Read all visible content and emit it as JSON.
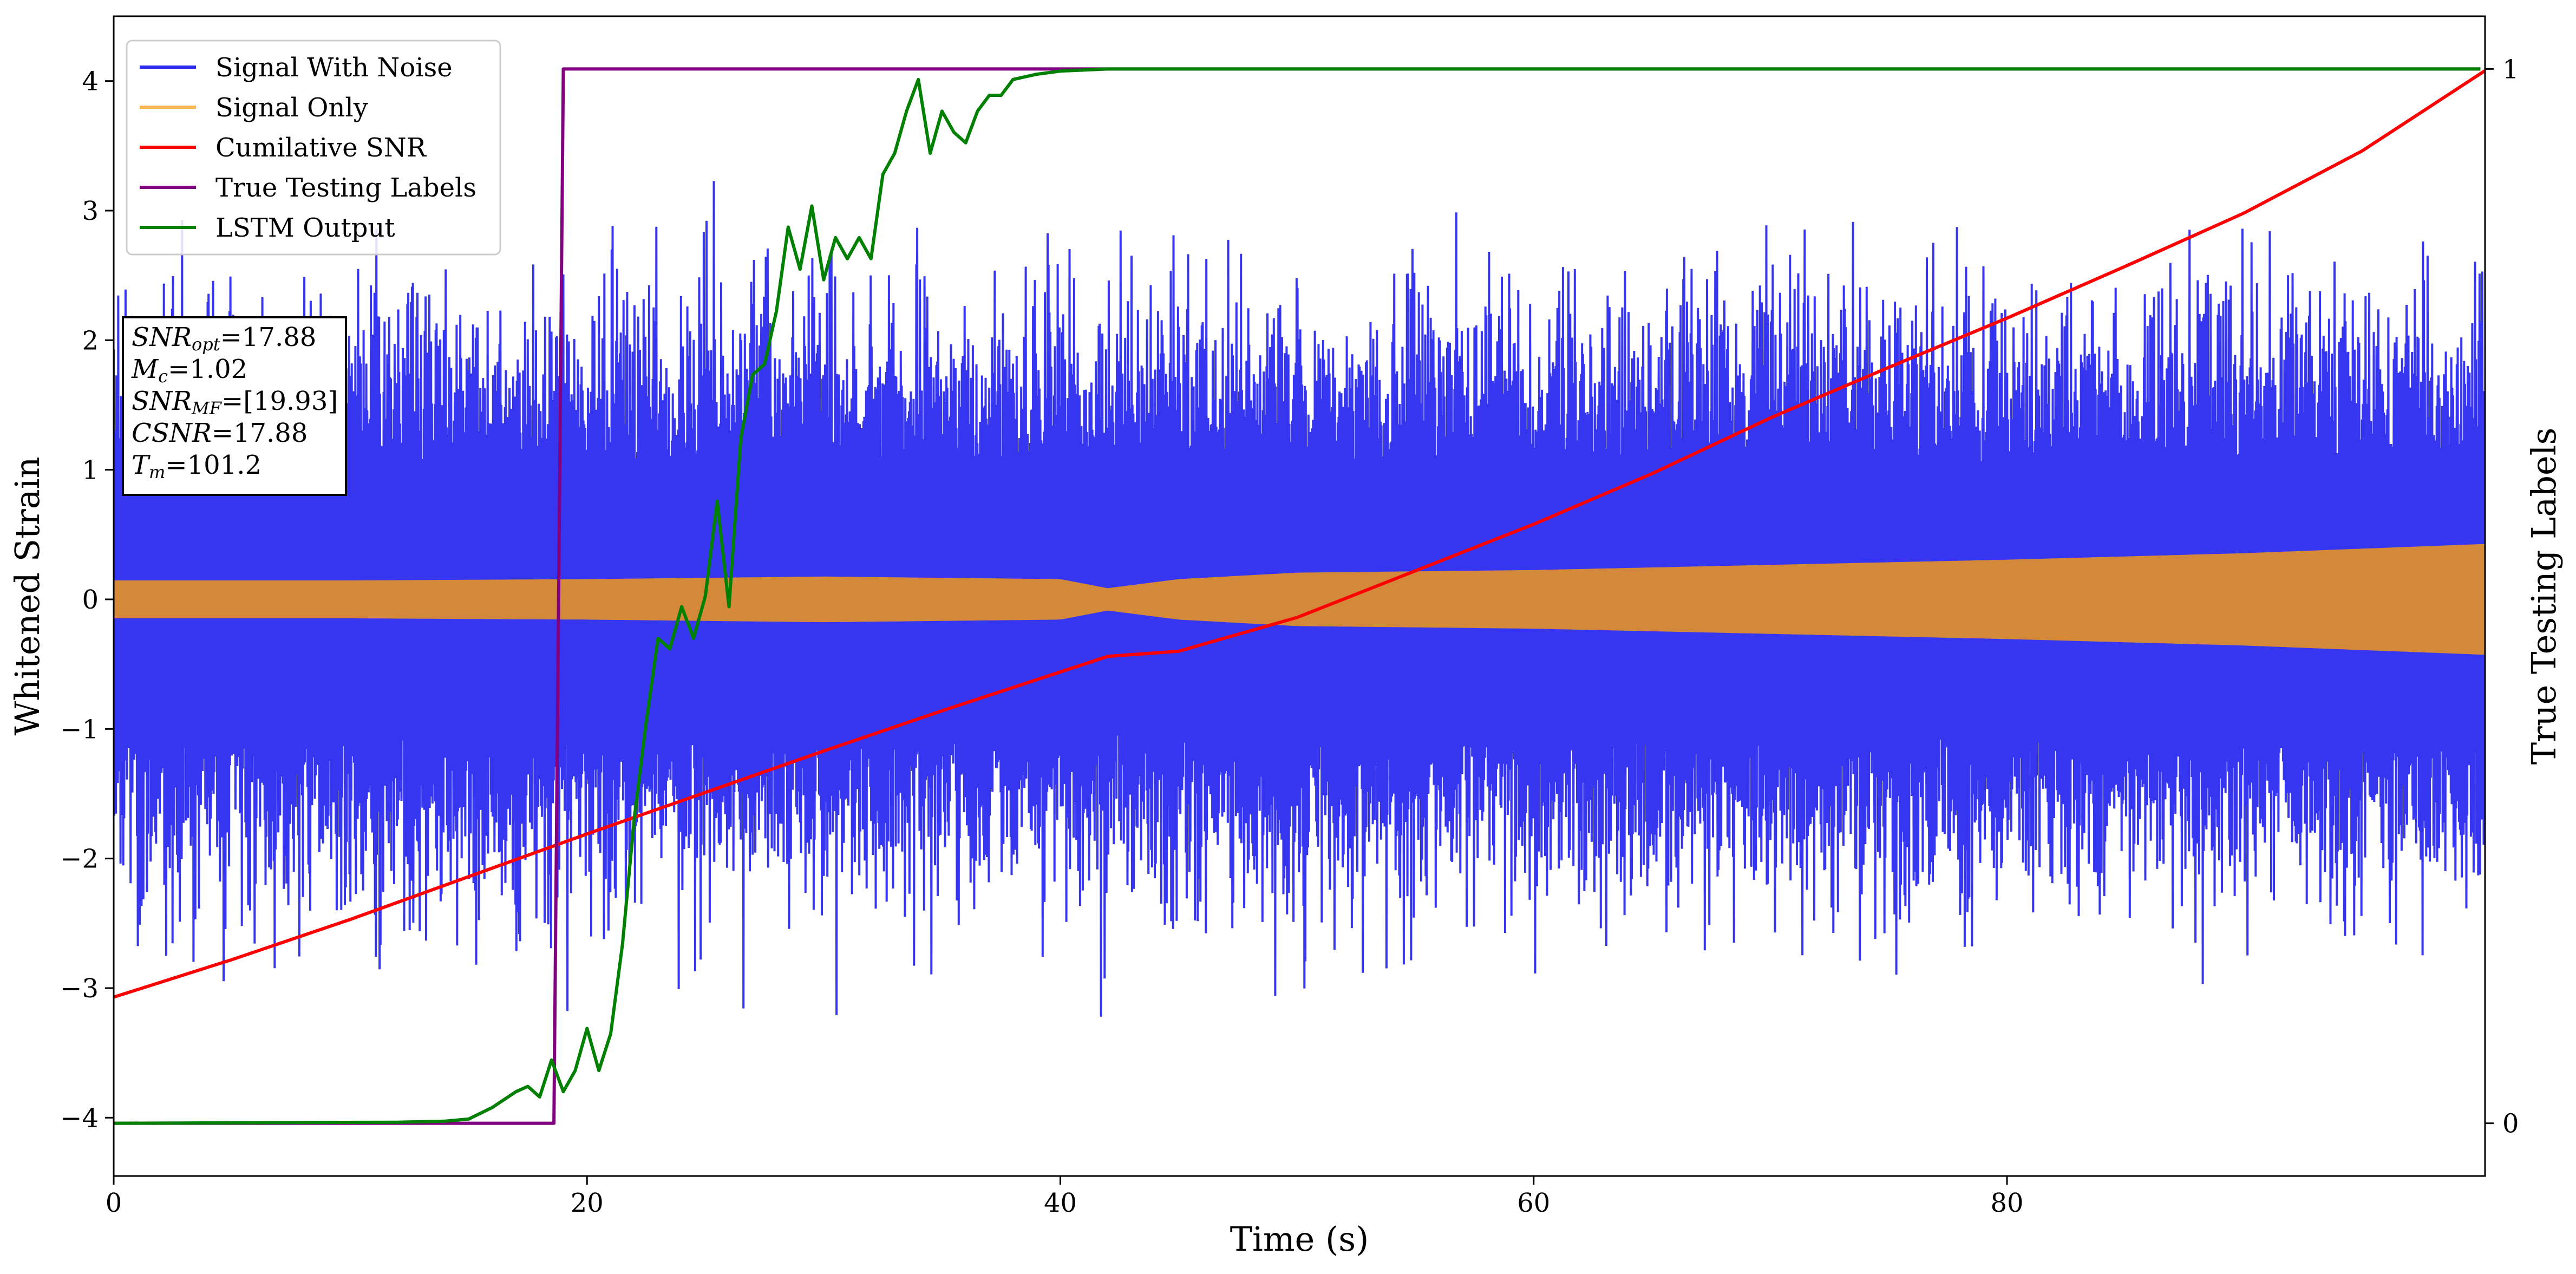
{
  "chart_data": {
    "type": "line",
    "xlabel": "Time (s)",
    "ylabel": "Whitened Strain",
    "ylabel_right": "True Testing Labels",
    "xlim": [
      0,
      100.2
    ],
    "ylim": [
      -4.45,
      4.5
    ],
    "ylim_right": [
      -0.05,
      1.05
    ],
    "x_ticks": [
      0,
      20,
      40,
      60,
      80
    ],
    "y_ticks": [
      -4,
      -3,
      -2,
      -1,
      0,
      1,
      2,
      3,
      4
    ],
    "y_ticks_right": [
      0,
      1
    ],
    "grid": false,
    "legend_position": "top-left",
    "legend": [
      "Signal With Noise",
      "Signal Only",
      "Cumilative SNR",
      "True Testing Labels",
      "LSTM Output"
    ],
    "colors": {
      "signal_with_noise": "#2b2bf0",
      "signal_only": "#d4893a",
      "signal_only_legend": "#ffb74d",
      "cumulative_snr": "#ff0000",
      "true_labels": "#800080",
      "lstm_output": "#008000"
    },
    "annotation": {
      "snr_opt": "=17.88",
      "mc": "=1.02",
      "snr_mf": "=[19.93]",
      "csnr": "=17.88",
      "tm": "=101.2"
    },
    "series": [
      {
        "name": "Signal With Noise",
        "axis": "left",
        "envelope_x": [
          0,
          10,
          20,
          30,
          40,
          50,
          60,
          70,
          80,
          90,
          100
        ],
        "envelope_amplitude": [
          2.3,
          2.4,
          2.3,
          2.4,
          2.3,
          2.4,
          2.3,
          2.4,
          2.3,
          2.4,
          2.3
        ],
        "min": -4.1,
        "max": 3.8
      },
      {
        "name": "Signal Only",
        "axis": "left",
        "envelope_x": [
          0,
          10,
          20,
          30,
          40,
          42,
          45,
          50,
          60,
          70,
          80,
          90,
          100
        ],
        "envelope_amplitude": [
          0.14,
          0.14,
          0.15,
          0.17,
          0.15,
          0.08,
          0.15,
          0.2,
          0.22,
          0.26,
          0.3,
          0.35,
          0.42
        ]
      },
      {
        "name": "Cumilative SNR",
        "axis": "left",
        "x": [
          0,
          5,
          10,
          15,
          20,
          25,
          30,
          35,
          40,
          42,
          45,
          50,
          55,
          60,
          65,
          70,
          75,
          80,
          85,
          90,
          95,
          100.2
        ],
        "y": [
          -3.07,
          -2.78,
          -2.47,
          -2.14,
          -1.81,
          -1.49,
          -1.17,
          -0.86,
          -0.56,
          -0.44,
          -0.4,
          -0.14,
          0.22,
          0.58,
          0.97,
          1.4,
          1.79,
          2.17,
          2.57,
          2.98,
          3.46,
          4.08
        ]
      },
      {
        "name": "True Testing Labels",
        "axis": "right",
        "x": [
          0,
          18.6,
          19.0,
          100
        ],
        "y": [
          0,
          0,
          1,
          1
        ]
      },
      {
        "name": "LSTM Output",
        "axis": "right",
        "x": [
          0,
          12,
          14,
          15,
          16,
          17,
          17.5,
          18,
          18.5,
          19,
          19.5,
          20,
          20.5,
          21,
          21.5,
          22,
          22.5,
          23,
          23.5,
          24,
          24.5,
          25,
          25.5,
          26,
          26.5,
          27,
          27.5,
          28,
          28.5,
          29,
          29.5,
          30,
          30.5,
          31,
          31.5,
          32,
          32.5,
          33,
          33.5,
          34,
          34.5,
          35,
          35.5,
          36,
          36.5,
          37,
          37.5,
          38,
          39,
          40,
          42,
          45,
          50,
          100
        ],
        "y": [
          0,
          0.001,
          0.002,
          0.004,
          0.015,
          0.03,
          0.035,
          0.025,
          0.06,
          0.03,
          0.05,
          0.09,
          0.05,
          0.085,
          0.17,
          0.29,
          0.38,
          0.46,
          0.45,
          0.49,
          0.46,
          0.5,
          0.59,
          0.49,
          0.65,
          0.71,
          0.72,
          0.77,
          0.85,
          0.81,
          0.87,
          0.8,
          0.84,
          0.82,
          0.84,
          0.82,
          0.9,
          0.92,
          0.96,
          0.99,
          0.92,
          0.96,
          0.94,
          0.93,
          0.96,
          0.975,
          0.975,
          0.99,
          0.995,
          0.998,
          1.0,
          1.0,
          1.0,
          1.0
        ]
      }
    ]
  }
}
